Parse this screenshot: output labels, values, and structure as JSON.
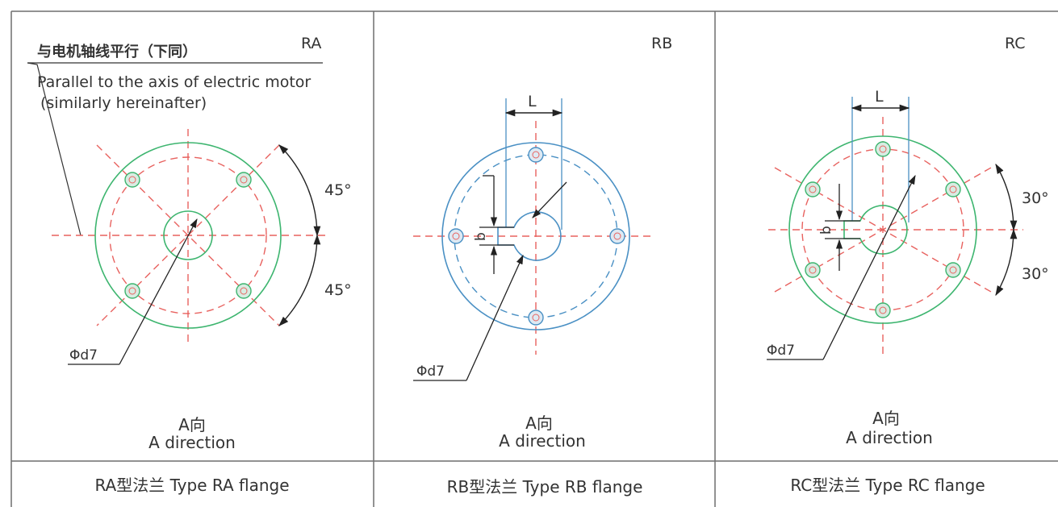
{
  "colors": {
    "frame": "#6f6f6f",
    "dim": "#3a3a3a",
    "centerline": "#e8625f",
    "green": "#3db56f",
    "blue": "#4a90c4"
  },
  "panels": [
    {
      "code": "RA",
      "note_cn": "与电机轴线平行（下同）",
      "note_en_1": "Parallel to the axis of electric motor",
      "note_en_2": "(similarly hereinafter)",
      "angle_top": "45°",
      "angle_bottom": "45°",
      "diameter": "Φd7",
      "view_cn": "A向",
      "view_en": "A direction",
      "caption": "RA型法兰 Type RA flange"
    },
    {
      "code": "RB",
      "dim_L": "L",
      "dim_b": "b",
      "diameter": "Φd7",
      "view_cn": "A向",
      "view_en": "A direction",
      "caption": "RB型法兰 Type RB flange"
    },
    {
      "code": "RC",
      "dim_L": "L",
      "dim_b": "b",
      "angle_top": "30°",
      "angle_bottom": "30°",
      "diameter": "Φd7",
      "view_cn": "A向",
      "view_en": "A direction",
      "caption": "RC型法兰 Type RC flange"
    }
  ]
}
